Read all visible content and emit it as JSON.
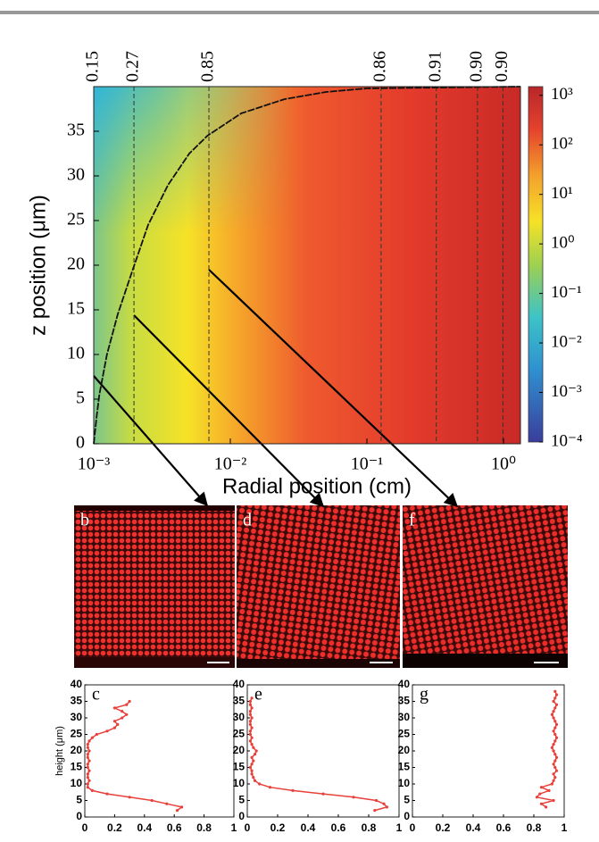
{
  "chart_data": [
    {
      "type": "contour",
      "xlabel": "Radial position (cm)",
      "ylabel": "z position (μm)",
      "xscale": "log",
      "xlim": [
        0.001,
        1.33
      ],
      "ylim": [
        0,
        40
      ],
      "xticks": [
        {
          "value": 0.001,
          "label": "10⁻³"
        },
        {
          "value": 0.01,
          "label": "10⁻²"
        },
        {
          "value": 0.1,
          "label": "10⁻¹"
        },
        {
          "value": 1,
          "label": "10⁰"
        }
      ],
      "yticks": [
        0,
        5,
        10,
        15,
        20,
        25,
        30,
        35
      ],
      "dashed_lines": {
        "x": [
          0.001,
          0.00197,
          0.00697,
          0.127,
          0.322,
          0.645,
          0.99
        ],
        "values": [
          0.15,
          0.27,
          0.85,
          0.86,
          0.91,
          0.9,
          0.9
        ],
        "value_labels": [
          "0.15",
          "0.27",
          "0.85",
          "0.86",
          "0.91",
          "0.90",
          "0.90"
        ]
      },
      "curve": {
        "x": [
          0.001,
          0.00105,
          0.0011,
          0.00125,
          0.0015,
          0.00188,
          0.0025,
          0.0035,
          0.005,
          0.0068,
          0.012,
          0.025,
          0.05,
          0.1,
          1.33
        ],
        "y": [
          0,
          3,
          5.5,
          10,
          14.5,
          19,
          24.5,
          29,
          32.5,
          34.5,
          37,
          38.6,
          39.4,
          39.8,
          40
        ]
      },
      "colorbar": {
        "scale": "log",
        "lim": [
          0.0001,
          1500
        ],
        "ticks": [
          {
            "value": 1000,
            "label": "10³"
          },
          {
            "value": 100,
            "label": "10²"
          },
          {
            "value": 10,
            "label": "10¹"
          },
          {
            "value": 1,
            "label": "10⁰"
          },
          {
            "value": 0.1,
            "label": "10⁻¹"
          },
          {
            "value": 0.01,
            "label": "10⁻²"
          },
          {
            "value": 0.001,
            "label": "10⁻³"
          },
          {
            "value": 0.0001,
            "label": "10⁻⁴"
          }
        ]
      }
    },
    {
      "type": "line",
      "panel": "c",
      "ylabel": "height (μm)",
      "color": "#e8403a",
      "xlim": [
        0,
        1
      ],
      "ylim": [
        0,
        40
      ],
      "xticks": [
        0,
        0.2,
        0.4,
        0.6,
        0.8,
        1
      ],
      "yticks": [
        0,
        5,
        10,
        15,
        20,
        25,
        30,
        35,
        40
      ],
      "x": [
        0.62,
        0.65,
        0.55,
        0.45,
        0.3,
        0.15,
        0.05,
        0.02,
        0.02,
        0.03,
        0.02,
        0.02,
        0.03,
        0.02,
        0.02,
        0.03,
        0.02,
        0.02,
        0.03,
        0.02,
        0.02,
        0.03,
        0.05,
        0.08,
        0.15,
        0.2,
        0.22,
        0.2,
        0.25,
        0.28,
        0.25,
        0.2,
        0.28,
        0.3
      ],
      "y": [
        2,
        3,
        4,
        5,
        6,
        7,
        8,
        9,
        10,
        11,
        12,
        13,
        14,
        15,
        16,
        17,
        18,
        19,
        20,
        21,
        22,
        23,
        24,
        25,
        26,
        27,
        28,
        29,
        30,
        31,
        32,
        33,
        34,
        35
      ]
    },
    {
      "type": "line",
      "panel": "e",
      "color": "#e8403a",
      "xlim": [
        0,
        1
      ],
      "ylim": [
        0,
        40
      ],
      "xticks": [
        0,
        0.2,
        0.4,
        0.6,
        0.8,
        1
      ],
      "yticks": [
        0,
        5,
        10,
        15,
        20,
        25,
        30,
        35,
        40
      ],
      "x": [
        0.84,
        0.92,
        0.9,
        0.85,
        0.7,
        0.5,
        0.3,
        0.15,
        0.08,
        0.05,
        0.04,
        0.03,
        0.03,
        0.02,
        0.03,
        0.04,
        0.03,
        0.05,
        0.06,
        0.04,
        0.03,
        0.02,
        0.03,
        0.02,
        0.02,
        0.03,
        0.02,
        0.02,
        0.03,
        0.02,
        0.02,
        0.03,
        0.02,
        0.02,
        0.03
      ],
      "y": [
        2,
        3,
        4,
        5,
        6,
        7,
        8,
        9,
        10,
        11,
        12,
        13,
        14,
        15,
        16,
        17,
        18,
        19,
        20,
        21,
        22,
        23,
        24,
        25,
        26,
        27,
        28,
        29,
        30,
        31,
        32,
        33,
        34,
        35,
        36
      ]
    },
    {
      "type": "line",
      "panel": "g",
      "color": "#e8403a",
      "xlim": [
        0,
        1
      ],
      "ylim": [
        0,
        40
      ],
      "xticks": [
        0,
        0.2,
        0.4,
        0.6,
        0.8,
        1
      ],
      "yticks": [
        0,
        5,
        10,
        15,
        20,
        25,
        30,
        35,
        40
      ],
      "x": [
        0.88,
        0.85,
        0.93,
        0.82,
        0.84,
        0.9,
        0.85,
        0.92,
        0.93,
        0.94,
        0.93,
        0.95,
        0.94,
        0.93,
        0.94,
        0.95,
        0.94,
        0.93,
        0.92,
        0.93,
        0.94,
        0.95,
        0.94,
        0.93,
        0.94,
        0.95,
        0.94,
        0.93,
        0.92,
        0.93,
        0.94,
        0.95,
        0.93,
        0.94,
        0.95,
        0.94
      ],
      "y": [
        3,
        4,
        5,
        6,
        7,
        8,
        9,
        10,
        11,
        12,
        13,
        14,
        15,
        16,
        17,
        18,
        19,
        20,
        21,
        22,
        23,
        24,
        25,
        26,
        27,
        28,
        29,
        30,
        31,
        32,
        33,
        34,
        35,
        36,
        37,
        38
      ]
    }
  ],
  "images": [
    {
      "panel": "b"
    },
    {
      "panel": "d"
    },
    {
      "panel": "f"
    }
  ]
}
